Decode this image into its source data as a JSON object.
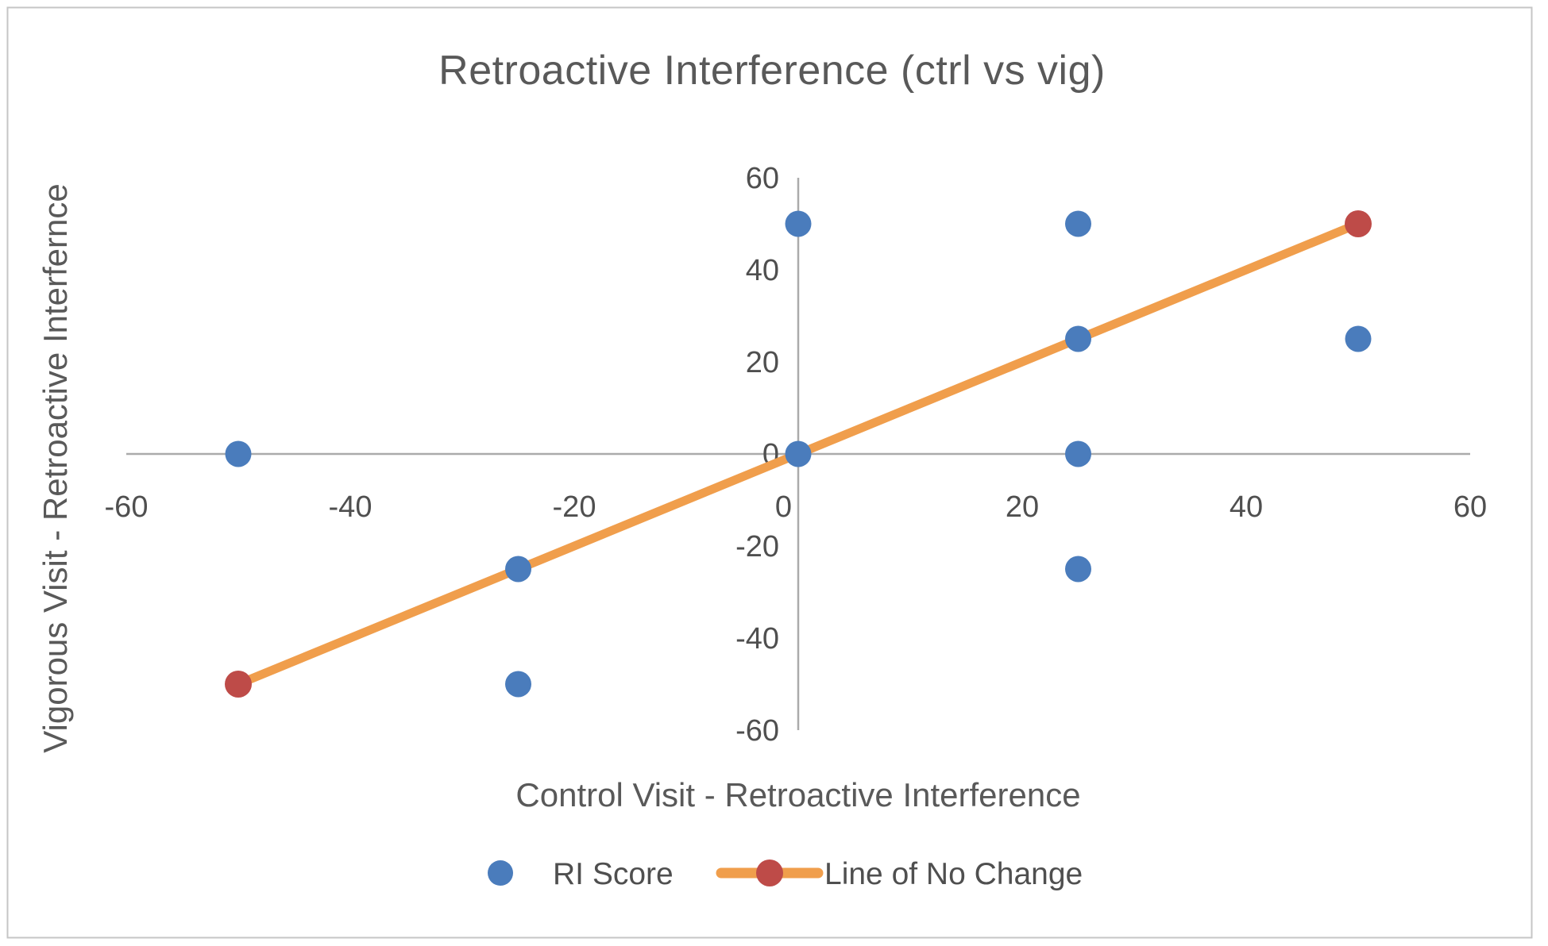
{
  "frame": {
    "background": "#ffffff",
    "border_color": "#c6c6c6"
  },
  "chart_data": {
    "type": "scatter",
    "title": "Retroactive Interference (ctrl vs vig)",
    "xlabel": "Control Visit - Retroactive Interference",
    "ylabel": "Vigorous Visit - Retroactive Interfernce",
    "xlim": [
      -60,
      60
    ],
    "ylim": [
      -60,
      60
    ],
    "x_ticks": [
      -60,
      -40,
      -20,
      0,
      20,
      40,
      60
    ],
    "y_ticks": [
      60,
      40,
      20,
      0,
      -20,
      -40,
      -60
    ],
    "grid": false,
    "legend_position": "bottom",
    "series": [
      {
        "name": "RI Score",
        "kind": "scatter",
        "marker_color": "#4A7CBC",
        "points": [
          [
            -50,
            0
          ],
          [
            -25,
            -25
          ],
          [
            -25,
            -50
          ],
          [
            0,
            0
          ],
          [
            0,
            50
          ],
          [
            25,
            -25
          ],
          [
            25,
            0
          ],
          [
            25,
            25
          ],
          [
            25,
            50
          ],
          [
            50,
            25
          ]
        ]
      },
      {
        "name": "Line of No Change",
        "kind": "line",
        "line_color": "#F09E4C",
        "marker_color": "#BE4B48",
        "points": [
          [
            -50,
            -50
          ],
          [
            50,
            50
          ]
        ]
      }
    ],
    "colors": {
      "title_text": "#595959",
      "tick_text": "#4f4f4f",
      "axis_line": "#ababab"
    }
  }
}
